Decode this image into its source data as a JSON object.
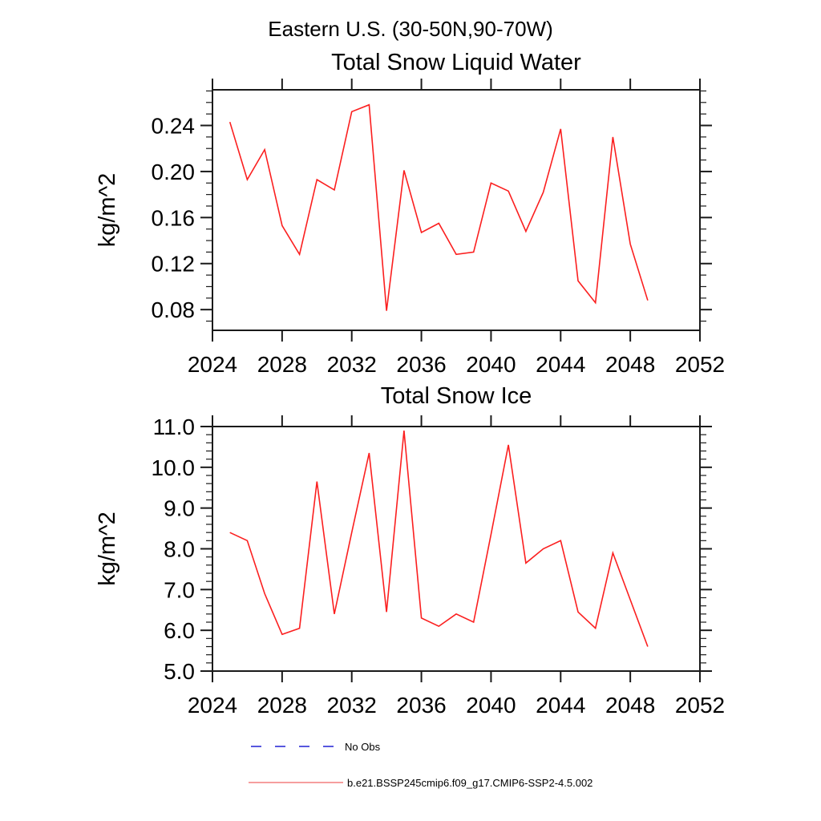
{
  "page": {
    "suptitle": "Eastern U.S. (30-50N,90-70W)"
  },
  "chart_data": [
    {
      "type": "line",
      "title": "Total Snow Liquid Water",
      "ylabel": "kg/m^2",
      "series": [
        {
          "name": "b.e21.BSSP245cmip6.f09_g17.CMIP6-SSP2-4.5.002",
          "color": "#fb1f1f",
          "x": [
            2025,
            2026,
            2027,
            2028,
            2029,
            2030,
            2031,
            2032,
            2033,
            2034,
            2035,
            2036,
            2037,
            2038,
            2039,
            2040,
            2041,
            2042,
            2043,
            2044,
            2045,
            2046,
            2047,
            2048,
            2049
          ],
          "values": [
            0.243,
            0.193,
            0.219,
            0.153,
            0.128,
            0.193,
            0.184,
            0.252,
            0.258,
            0.079,
            0.201,
            0.147,
            0.155,
            0.128,
            0.13,
            0.19,
            0.183,
            0.148,
            0.182,
            0.237,
            0.105,
            0.086,
            0.23,
            0.137,
            0.088
          ]
        }
      ],
      "xlim": [
        2024,
        2052
      ],
      "ylim": [
        0.062,
        0.271
      ],
      "xticks": [
        2024,
        2028,
        2032,
        2036,
        2040,
        2044,
        2048,
        2052
      ],
      "xtick_labels": [
        "2024",
        "2028",
        "2032",
        "2036",
        "2040",
        "2044",
        "2048",
        "2052"
      ],
      "yticks": [
        0.08,
        0.12,
        0.16,
        0.2,
        0.24
      ],
      "ytick_labels": [
        "0.08",
        "0.12",
        "0.16",
        "0.20",
        "0.24"
      ],
      "yminor_step": 0.01,
      "grid": false,
      "legend_position": "none"
    },
    {
      "type": "line",
      "title": "Total Snow Ice",
      "ylabel": "kg/m^2",
      "series": [
        {
          "name": "b.e21.BSSP245cmip6.f09_g17.CMIP6-SSP2-4.5.002",
          "color": "#fb1f1f",
          "x": [
            2025,
            2026,
            2027,
            2028,
            2029,
            2030,
            2031,
            2032,
            2033,
            2034,
            2035,
            2036,
            2037,
            2038,
            2039,
            2040,
            2041,
            2042,
            2043,
            2044,
            2045,
            2046,
            2047,
            2048,
            2049
          ],
          "values": [
            8.4,
            8.2,
            6.9,
            5.9,
            6.05,
            9.65,
            6.4,
            8.4,
            10.35,
            6.45,
            10.9,
            6.3,
            6.1,
            6.4,
            6.2,
            8.35,
            10.55,
            7.65,
            8.0,
            8.2,
            6.45,
            6.05,
            7.9,
            6.75,
            5.6
          ]
        }
      ],
      "xlim": [
        2024,
        2052
      ],
      "ylim": [
        5.0,
        11.0
      ],
      "xticks": [
        2024,
        2028,
        2032,
        2036,
        2040,
        2044,
        2048,
        2052
      ],
      "xtick_labels": [
        "2024",
        "2028",
        "2032",
        "2036",
        "2040",
        "2044",
        "2048",
        "2052"
      ],
      "yticks": [
        5.0,
        6.0,
        7.0,
        8.0,
        9.0,
        10.0,
        11.0
      ],
      "ytick_labels": [
        "5.0",
        "6.0",
        "7.0",
        "8.0",
        "9.0",
        "10.0",
        "11.0"
      ],
      "yminor_step": 0.2,
      "grid": false,
      "legend_position": "bottom"
    }
  ],
  "legend": {
    "items": [
      {
        "label": "No Obs",
        "color": "#5858de",
        "style": "dashed"
      },
      {
        "label": "b.e21.BSSP245cmip6.f09_g17.CMIP6-SSP2-4.5.002",
        "color": "#f47e7e",
        "style": "solid"
      }
    ]
  },
  "colors": {
    "line_red": "#fb1f1f",
    "no_obs_blue": "#5858de",
    "legend_red": "#f47e7e",
    "frame": "#1a1a1a"
  }
}
